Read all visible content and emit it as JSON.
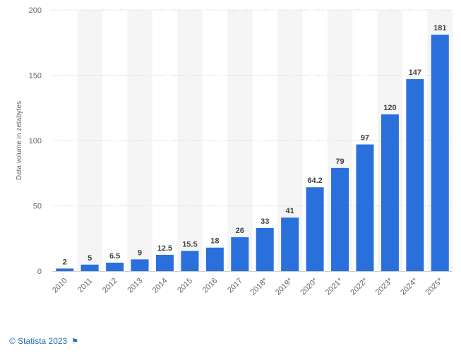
{
  "chart_data": {
    "type": "bar",
    "categories": [
      "2010",
      "2011",
      "2012",
      "2013",
      "2014",
      "2015",
      "2016",
      "2017",
      "2018*",
      "2019*",
      "2020*",
      "2021*",
      "2022*",
      "2023*",
      "2024*",
      "2025*"
    ],
    "values": [
      2,
      5,
      6.5,
      9,
      12.5,
      15.5,
      18,
      26,
      33,
      41,
      64.2,
      79,
      97,
      120,
      147,
      181
    ],
    "value_labels": [
      "2",
      "5",
      "6.5",
      "9",
      "12.5",
      "15.5",
      "18",
      "26",
      "33",
      "41",
      "64.2",
      "79",
      "97",
      "120",
      "147",
      "181"
    ],
    "title": "",
    "xlabel": "",
    "ylabel": "Data volume in zetabytes",
    "ylim": [
      0,
      200
    ],
    "yticks": [
      0,
      50,
      100,
      150,
      200
    ],
    "grid": true,
    "bar_color": "#2a70dc",
    "alt_band_color": "#f5f5f5",
    "label_color": "#444444"
  },
  "footer": {
    "credit": "© Statista 2023",
    "flag_icon": "flag-icon"
  }
}
